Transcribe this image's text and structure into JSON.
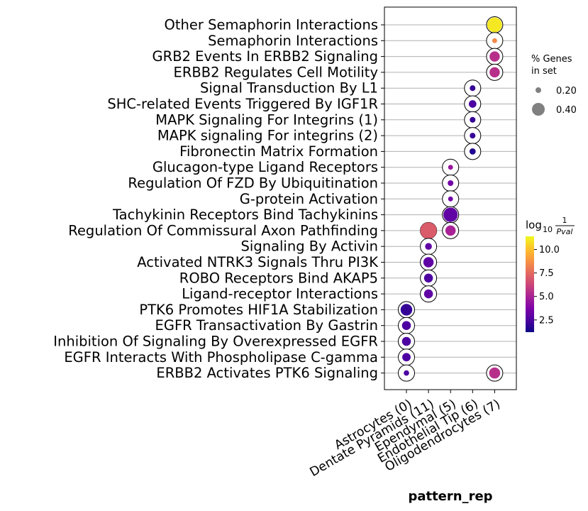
{
  "chart_data": {
    "type": "dotplot",
    "title": "",
    "xlabel": "pattern_rep",
    "ylabel": "",
    "categories": [
      "Astrocytes (0)",
      "Dentate Pyramids (11)",
      "Ependymal (5)",
      "Endothelial Tip (6)",
      "Oligodendrocytes (7)"
    ],
    "terms": [
      "Other Semaphorin Interactions",
      "Semaphorin Interactions",
      "GRB2 Events In ERBB2 Signaling",
      "ERBB2 Regulates Cell Motility",
      "Signal Transduction By L1",
      "SHC-related Events Triggered By IGF1R",
      "MAPK Signaling For Integrins (1)",
      "MAPK signaling For integrins (2)",
      "Fibronectin Matrix Formation",
      "Glucagon-type Ligand Receptors",
      "Regulation Of FZD By Ubiquitination",
      "G-protein Activation",
      "Tachykinin Receptors Bind Tachykinins",
      "Regulation Of Commissural Axon Pathfinding",
      "Signaling By Activin",
      "Activated NTRK3 Signals Thru PI3K",
      "ROBO Receptors Bind AKAP5",
      "Ligand-receptor Interactions",
      "PTK6 Promotes HIF1A Stabilization",
      "EGFR Transactivation By Gastrin",
      "Inhibition Of Signaling By Overexpressed EGFR",
      "EGFR Interacts With Phospholipase C-gamma",
      "ERBB2 Activates PTK6 Signaling"
    ],
    "points": [
      {
        "term": 0,
        "category": 4,
        "pct": 0.42,
        "log10_inv_p": 11.0
      },
      {
        "term": 1,
        "category": 4,
        "pct": 0.05,
        "log10_inv_p": 8.5
      },
      {
        "term": 2,
        "category": 4,
        "pct": 0.25,
        "log10_inv_p": 5.5
      },
      {
        "term": 3,
        "category": 4,
        "pct": 0.25,
        "log10_inv_p": 5.5
      },
      {
        "term": 4,
        "category": 3,
        "pct": 0.08,
        "log10_inv_p": 2.0
      },
      {
        "term": 5,
        "category": 3,
        "pct": 0.15,
        "log10_inv_p": 2.5
      },
      {
        "term": 6,
        "category": 3,
        "pct": 0.08,
        "log10_inv_p": 2.0
      },
      {
        "term": 7,
        "category": 3,
        "pct": 0.08,
        "log10_inv_p": 2.0
      },
      {
        "term": 8,
        "category": 3,
        "pct": 0.1,
        "log10_inv_p": 1.6
      },
      {
        "term": 9,
        "category": 2,
        "pct": 0.05,
        "log10_inv_p": 4.5
      },
      {
        "term": 10,
        "category": 2,
        "pct": 0.08,
        "log10_inv_p": 3.5
      },
      {
        "term": 11,
        "category": 2,
        "pct": 0.05,
        "log10_inv_p": 3.5
      },
      {
        "term": 12,
        "category": 2,
        "pct": 0.4,
        "log10_inv_p": 3.0
      },
      {
        "term": 13,
        "category": 2,
        "pct": 0.25,
        "log10_inv_p": 5.0
      },
      {
        "term": 13,
        "category": 1,
        "pct": 0.48,
        "log10_inv_p": 7.0
      },
      {
        "term": 14,
        "category": 1,
        "pct": 0.12,
        "log10_inv_p": 3.0
      },
      {
        "term": 15,
        "category": 1,
        "pct": 0.25,
        "log10_inv_p": 3.0
      },
      {
        "term": 16,
        "category": 1,
        "pct": 0.2,
        "log10_inv_p": 2.5
      },
      {
        "term": 17,
        "category": 1,
        "pct": 0.2,
        "log10_inv_p": 3.0
      },
      {
        "term": 18,
        "category": 0,
        "pct": 0.3,
        "log10_inv_p": 2.0
      },
      {
        "term": 19,
        "category": 0,
        "pct": 0.2,
        "log10_inv_p": 2.5
      },
      {
        "term": 20,
        "category": 0,
        "pct": 0.2,
        "log10_inv_p": 2.5
      },
      {
        "term": 21,
        "category": 0,
        "pct": 0.18,
        "log10_inv_p": 2.5
      },
      {
        "term": 22,
        "category": 0,
        "pct": 0.07,
        "log10_inv_p": 2.5
      },
      {
        "term": 22,
        "category": 4,
        "pct": 0.28,
        "log10_inv_p": 5.5
      }
    ],
    "size_legend": {
      "title_line1": "% Genes",
      "title_line2": "in set",
      "entries": [
        {
          "label": "0.20",
          "value": 0.2
        },
        {
          "label": "0.40",
          "value": 0.4
        }
      ]
    },
    "colorbar": {
      "label_main": "log",
      "label_sub": "10",
      "label_num": "1",
      "label_den": "Pval",
      "colormap": "plasma",
      "range": [
        1.2,
        11.4
      ],
      "ticks": [
        {
          "label": "2.5",
          "value": 2.5
        },
        {
          "label": "5.0",
          "value": 5.0
        },
        {
          "label": "7.5",
          "value": 7.5
        },
        {
          "label": "10.0",
          "value": 10.0
        }
      ]
    },
    "grid": true
  }
}
